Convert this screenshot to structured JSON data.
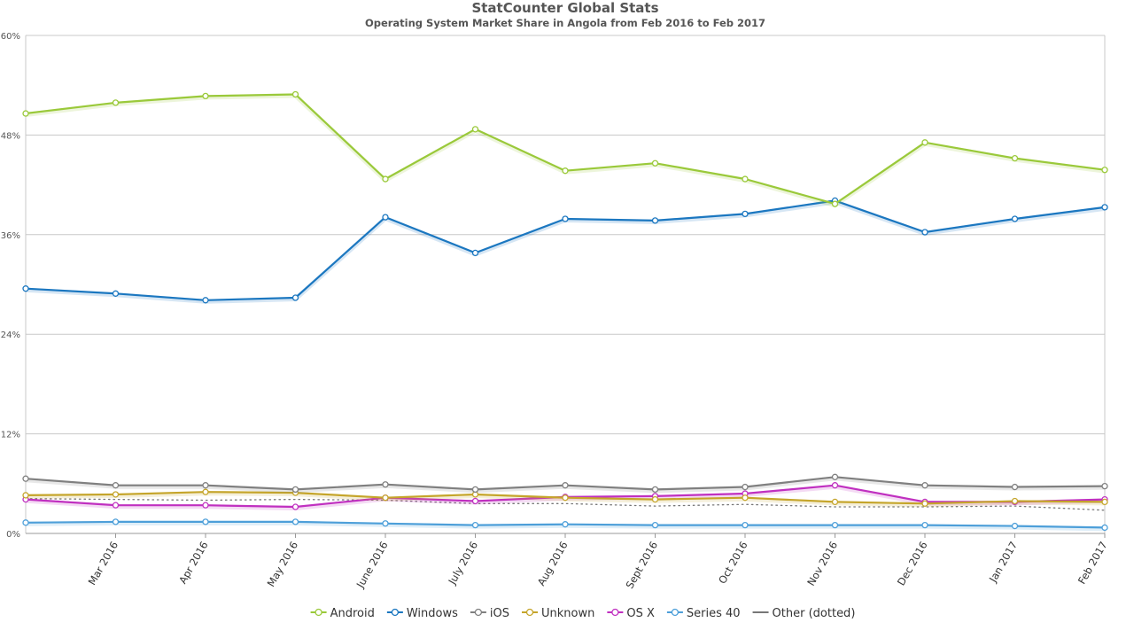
{
  "chart_data": {
    "type": "line",
    "title": "StatCounter Global Stats",
    "subtitle": "Operating System Market Share in Angola from Feb 2016 to Feb 2017",
    "x": [
      "Feb 2016",
      "Mar 2016",
      "Apr 2016",
      "May 2016",
      "June 2016",
      "July 2016",
      "Aug 2016",
      "Sept 2016",
      "Oct 2016",
      "Nov 2016",
      "Dec 2016",
      "Jan 2017",
      "Feb 2017"
    ],
    "x_tick_labels": [
      "Mar 2016",
      "Apr 2016",
      "May 2016",
      "June 2016",
      "July 2016",
      "Aug 2016",
      "Sept 2016",
      "Oct 2016",
      "Nov 2016",
      "Dec 2016",
      "Jan 2017",
      "Feb 2017"
    ],
    "y_ticks": [
      0,
      12,
      24,
      36,
      48,
      60
    ],
    "y_tick_labels": [
      "0%",
      "12%",
      "24%",
      "36%",
      "48%",
      "60%"
    ],
    "ylim": [
      0,
      60
    ],
    "grid": true,
    "legend_position": "bottom-center",
    "series": [
      {
        "name": "Android",
        "color": "#9ac93a",
        "marker": true,
        "dotted": false,
        "values": [
          50.6,
          51.9,
          52.7,
          52.9,
          42.7,
          48.7,
          43.7,
          44.6,
          42.7,
          39.7,
          47.1,
          45.2,
          43.8
        ]
      },
      {
        "name": "Windows",
        "color": "#1b77c0",
        "marker": true,
        "dotted": false,
        "values": [
          29.5,
          28.9,
          28.1,
          28.4,
          38.1,
          33.8,
          37.9,
          37.7,
          38.5,
          40.1,
          36.3,
          37.9,
          39.3
        ]
      },
      {
        "name": "iOS",
        "color": "#808080",
        "marker": true,
        "dotted": false,
        "values": [
          6.6,
          5.8,
          5.8,
          5.3,
          5.9,
          5.3,
          5.8,
          5.3,
          5.6,
          6.8,
          5.8,
          5.6,
          5.7
        ]
      },
      {
        "name": "Unknown",
        "color": "#c5a52b",
        "marker": true,
        "dotted": false,
        "values": [
          4.6,
          4.7,
          5.0,
          4.9,
          4.3,
          4.7,
          4.3,
          4.1,
          4.3,
          3.8,
          3.6,
          3.9,
          3.8
        ]
      },
      {
        "name": "OS X",
        "color": "#c030c0",
        "marker": true,
        "dotted": false,
        "values": [
          4.1,
          3.4,
          3.4,
          3.2,
          4.3,
          3.9,
          4.4,
          4.5,
          4.8,
          5.8,
          3.8,
          3.8,
          4.1
        ]
      },
      {
        "name": "Series 40",
        "color": "#4d9fd9",
        "marker": true,
        "dotted": false,
        "values": [
          1.3,
          1.4,
          1.4,
          1.4,
          1.2,
          1.0,
          1.1,
          1.0,
          1.0,
          1.0,
          1.0,
          0.9,
          0.7
        ]
      },
      {
        "name": "Other (dotted)",
        "color": "#777777",
        "marker": false,
        "dotted": true,
        "values": [
          4.2,
          4.1,
          4.0,
          4.1,
          4.0,
          3.6,
          3.6,
          3.3,
          3.5,
          3.2,
          3.2,
          3.3,
          2.8
        ]
      }
    ]
  }
}
